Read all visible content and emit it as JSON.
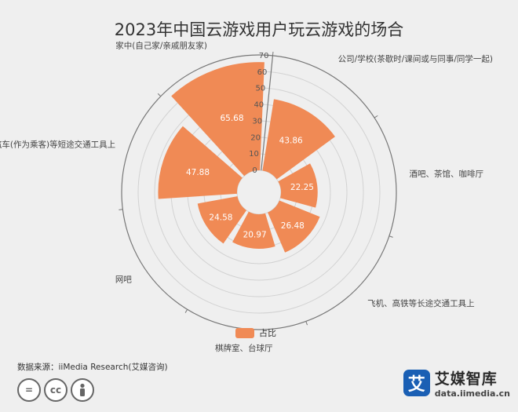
{
  "title": "2023年中国云游戏用户玩云游戏的场合",
  "chart_data": {
    "type": "bar",
    "polar": true,
    "title": "2023年中国云游戏用户玩云游戏的场合",
    "categories": [
      "公司/学校(茶歇时/课间或与同事/同学一起)",
      "酒吧、茶馆、咖啡厅",
      "飞机、高铁等长途交通工具上",
      "棋牌室、台球厅",
      "网吧",
      "公交车、汽车(作为乘客)等短途交通工具上",
      "家中(自己家/亲戚朋友家)"
    ],
    "series": [
      {
        "name": "占比",
        "values": [
          43.86,
          22.25,
          26.48,
          20.97,
          24.58,
          47.88,
          65.68
        ]
      }
    ],
    "radial_ticks": [
      "0",
      "10",
      "20",
      "30",
      "40",
      "50",
      "60",
      "70"
    ],
    "rlim": [
      0,
      70
    ],
    "legend_position": "bottom",
    "bar_color": "#f08a55",
    "grid": true
  },
  "source": "数据来源：iiMedia Research(艾媒咨询)",
  "license_icons": [
    "=",
    "cc",
    "person"
  ],
  "brand": {
    "logo_char": "艾",
    "name": "艾媒智库",
    "url": "data.iimedia.cn"
  }
}
